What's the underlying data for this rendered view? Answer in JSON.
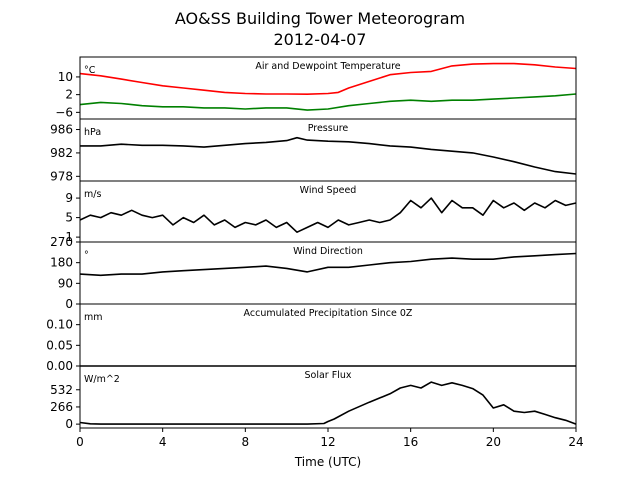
{
  "title_line1": "AO&SS Building Tower Meteorogram",
  "title_line2": "2012-04-07",
  "chart_data": {
    "type": "line",
    "xlabel": "Time (UTC)",
    "xlim": [
      0,
      24
    ],
    "xticks": [
      "0",
      "4",
      "8",
      "12",
      "16",
      "20",
      "24"
    ],
    "panels": [
      {
        "name": "temp",
        "title": "Air and Dewpoint Temperature",
        "unit": "°C",
        "ylim": [
          -9,
          19
        ],
        "yticks": [
          {
            "v": -6,
            "label": "−6"
          },
          {
            "v": 2,
            "label": "2"
          },
          {
            "v": 10,
            "label": "10"
          }
        ],
        "series": [
          {
            "color": "#ff0000",
            "x": [
              0,
              1,
              2,
              3,
              4,
              5,
              6,
              7,
              8,
              9,
              10,
              11,
              12,
              12.5,
              13,
              14,
              15,
              16,
              17,
              18,
              19,
              20,
              21,
              22,
              23,
              24
            ],
            "y": [
              11.5,
              10.5,
              9,
              7.5,
              6,
              5,
              4,
              3,
              2.5,
              2.3,
              2.3,
              2.2,
              2.5,
              3,
              5,
              8,
              11,
              12,
              12.5,
              15,
              15.8,
              16,
              16,
              15.5,
              14.5,
              13.8
            ]
          },
          {
            "color": "#008000",
            "x": [
              0,
              1,
              2,
              3,
              4,
              5,
              6,
              7,
              8,
              9,
              10,
              11,
              12,
              13,
              14,
              15,
              16,
              17,
              18,
              19,
              20,
              21,
              22,
              23,
              24
            ],
            "y": [
              -2.5,
              -1.5,
              -2,
              -3,
              -3.5,
              -3.5,
              -4,
              -4,
              -4.5,
              -4,
              -4,
              -5,
              -4.5,
              -3,
              -2,
              -1,
              -0.5,
              -1,
              -0.5,
              -0.5,
              0,
              0.5,
              1,
              1.5,
              2.3
            ]
          }
        ]
      },
      {
        "name": "pressure",
        "title": "Pressure",
        "unit": "hPa",
        "ylim": [
          977.2,
          987.8
        ],
        "yticks": [
          {
            "v": 978,
            "label": "978"
          },
          {
            "v": 982,
            "label": "982"
          },
          {
            "v": 986,
            "label": "986"
          }
        ],
        "series": [
          {
            "color": "#000000",
            "x": [
              0,
              1,
              2,
              3,
              4,
              5,
              6,
              7,
              8,
              9,
              10,
              10.5,
              11,
              12,
              13,
              14,
              15,
              16,
              17,
              18,
              19,
              20,
              21,
              22,
              23,
              24
            ],
            "y": [
              983.2,
              983.2,
              983.5,
              983.3,
              983.3,
              983.2,
              983,
              983.3,
              983.6,
              983.8,
              984.1,
              984.6,
              984.2,
              984,
              983.9,
              983.6,
              983.2,
              983,
              982.6,
              982.3,
              982,
              981.3,
              980.5,
              979.6,
              978.8,
              978.4
            ]
          }
        ]
      },
      {
        "name": "wind_speed",
        "title": "Wind Speed",
        "unit": "m/s",
        "ylim": [
          0,
          12.5
        ],
        "yticks": [
          {
            "v": 1,
            "label": "1"
          },
          {
            "v": 5,
            "label": "5"
          },
          {
            "v": 9,
            "label": "9"
          }
        ],
        "series": [
          {
            "color": "#000000",
            "x": [
              0,
              0.5,
              1,
              1.5,
              2,
              2.5,
              3,
              3.5,
              4,
              4.5,
              5,
              5.5,
              6,
              6.5,
              7,
              7.5,
              8,
              8.5,
              9,
              9.5,
              10,
              10.5,
              11,
              11.5,
              12,
              12.5,
              13,
              13.5,
              14,
              14.5,
              15,
              15.5,
              16,
              16.5,
              17,
              17.5,
              18,
              18.5,
              19,
              19.5,
              20,
              20.5,
              21,
              21.5,
              22,
              22.5,
              23,
              23.5,
              24
            ],
            "y": [
              4.5,
              5.5,
              5,
              6,
              5.5,
              6.5,
              5.5,
              5,
              5.5,
              3.5,
              5,
              4,
              5.5,
              3.5,
              4.5,
              3,
              4,
              3.5,
              4.5,
              3,
              4,
              2,
              3,
              4,
              3,
              4.5,
              3.5,
              4,
              4.5,
              4,
              4.5,
              6,
              8.5,
              7,
              9,
              6,
              8.5,
              7,
              7,
              5.5,
              8.5,
              7,
              8,
              6.5,
              8,
              7,
              8.5,
              7.5,
              8
            ]
          }
        ]
      },
      {
        "name": "wind_dir",
        "title": "Wind Direction",
        "unit": "°",
        "ylim": [
          0,
          270
        ],
        "yticks": [
          {
            "v": 0,
            "label": "0"
          },
          {
            "v": 90,
            "label": "90"
          },
          {
            "v": 180,
            "label": "180"
          },
          {
            "v": 270,
            "label": "270"
          }
        ],
        "series": [
          {
            "color": "#000000",
            "x": [
              0,
              1,
              2,
              3,
              4,
              5,
              6,
              7,
              8,
              9,
              10,
              11,
              12,
              13,
              14,
              15,
              16,
              17,
              18,
              19,
              20,
              21,
              22,
              23,
              24
            ],
            "y": [
              130,
              125,
              130,
              130,
              140,
              145,
              150,
              155,
              160,
              165,
              155,
              140,
              160,
              160,
              170,
              180,
              185,
              195,
              200,
              195,
              195,
              205,
              210,
              215,
              220
            ]
          }
        ]
      },
      {
        "name": "precip",
        "title": "Accumulated Precipitation Since 0Z",
        "unit": "mm",
        "ylim": [
          0,
          0.15
        ],
        "yticks": [
          {
            "v": 0,
            "label": "0.00"
          },
          {
            "v": 0.05,
            "label": "0.05"
          },
          {
            "v": 0.1,
            "label": "0.10"
          }
        ],
        "series": [
          {
            "color": "#000000",
            "x": [
              0,
              24
            ],
            "y": [
              0,
              0
            ]
          }
        ]
      },
      {
        "name": "solar",
        "title": "Solar Flux",
        "unit": "W/m^2",
        "ylim": [
          -60,
          900
        ],
        "yticks": [
          {
            "v": 0,
            "label": "0"
          },
          {
            "v": 266,
            "label": "266"
          },
          {
            "v": 532,
            "label": "532"
          }
        ],
        "series": [
          {
            "color": "#000000",
            "x": [
              0,
              0.5,
              1,
              2,
              4,
              6,
              8,
              10,
              11,
              11.8,
              12,
              12.3,
              13,
              14,
              15,
              15.5,
              16,
              16.5,
              17,
              17.5,
              18,
              18.5,
              19,
              19.5,
              20,
              20.5,
              21,
              21.5,
              22,
              22.5,
              23,
              23.5,
              24
            ],
            "y": [
              25,
              5,
              0,
              0,
              0,
              0,
              0,
              0,
              0,
              10,
              40,
              80,
              200,
              340,
              470,
              560,
              600,
              560,
              650,
              600,
              640,
              600,
              550,
              450,
              250,
              300,
              200,
              180,
              200,
              150,
              100,
              60,
              0
            ]
          }
        ]
      }
    ]
  }
}
